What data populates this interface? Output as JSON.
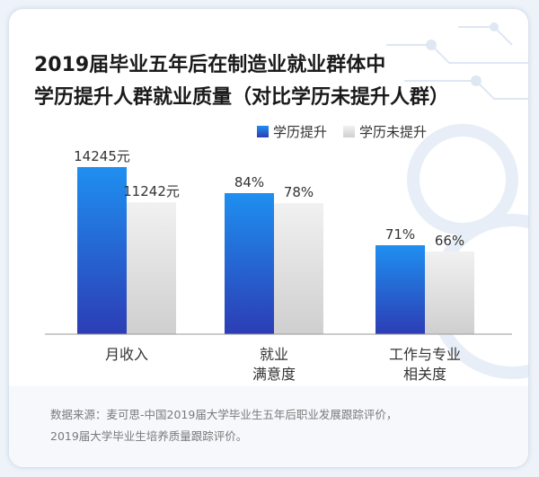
{
  "title_line1": "2019届毕业五年后在制造业就业群体中",
  "title_line2": "学历提升人群就业质量（对比学历未提升人群）",
  "source_line1": "数据来源：麦可思-中国2019届大学毕业生五年后职业发展跟踪评价，",
  "source_line2": "2019届大学毕业生培养质量跟踪评价。",
  "colors": {
    "primary": "#2b4fc4",
    "secondary": "#d8d8d8",
    "accent": "#4a78d8"
  },
  "chart_data": {
    "type": "bar",
    "categories": [
      "月收入",
      "就业\n满意度",
      "工作与专业\n相关度"
    ],
    "series": [
      {
        "name": "学历提升",
        "labels": [
          "14245元",
          "84%",
          "71%"
        ],
        "values": [
          14245,
          84,
          71
        ]
      },
      {
        "name": "学历未提升",
        "labels": [
          "11242元",
          "78%",
          "66%"
        ],
        "values": [
          11242,
          78,
          66
        ]
      }
    ],
    "legend_position": "top-right"
  }
}
